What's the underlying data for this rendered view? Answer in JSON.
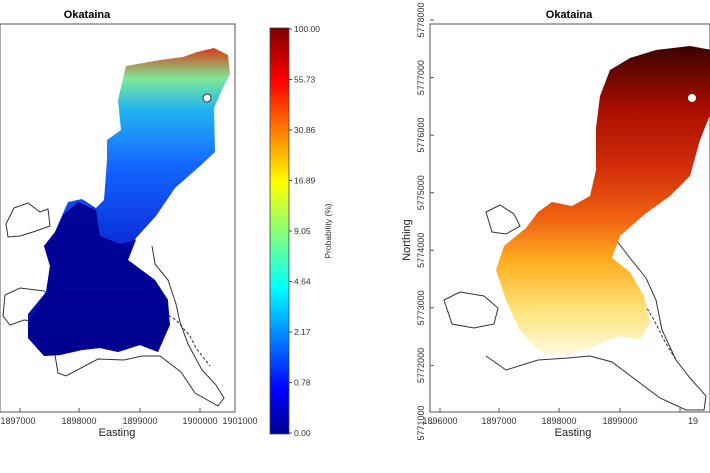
{
  "chart_data": [
    {
      "type": "heatmap",
      "title": "Okataina",
      "xlabel": "Easting",
      "ylabel": "",
      "x_ticks": [
        "1897000",
        "1898000",
        "1899000",
        "1900000",
        "1901000"
      ],
      "y_ticks": [],
      "xlim": [
        1896600,
        1901000
      ],
      "ylim": [
        5771000,
        5778000
      ],
      "colormap": "jet",
      "colorbar": {
        "label": "Probability (%)",
        "ticks": [
          "100.00",
          "55.73",
          "30.86",
          "16.89",
          "9.05",
          "4.64",
          "2.17",
          "0.78",
          "0.00"
        ]
      },
      "grid": false,
      "legend": "none"
    },
    {
      "type": "heatmap",
      "title": "Okataina",
      "xlabel": "Easting",
      "ylabel": "Northing",
      "x_ticks": [
        "1896000",
        "1897000",
        "1898000",
        "1899000",
        "1900000",
        "19"
      ],
      "y_ticks": [
        "5778000",
        "5777000",
        "5776000",
        "5775000",
        "5774000",
        "5773000",
        "5772000",
        "5771000"
      ],
      "xlim": [
        1896000,
        1900800
      ],
      "ylim": [
        5771000,
        5778000
      ],
      "colormap": "hot",
      "grid": false,
      "legend": "none"
    }
  ]
}
